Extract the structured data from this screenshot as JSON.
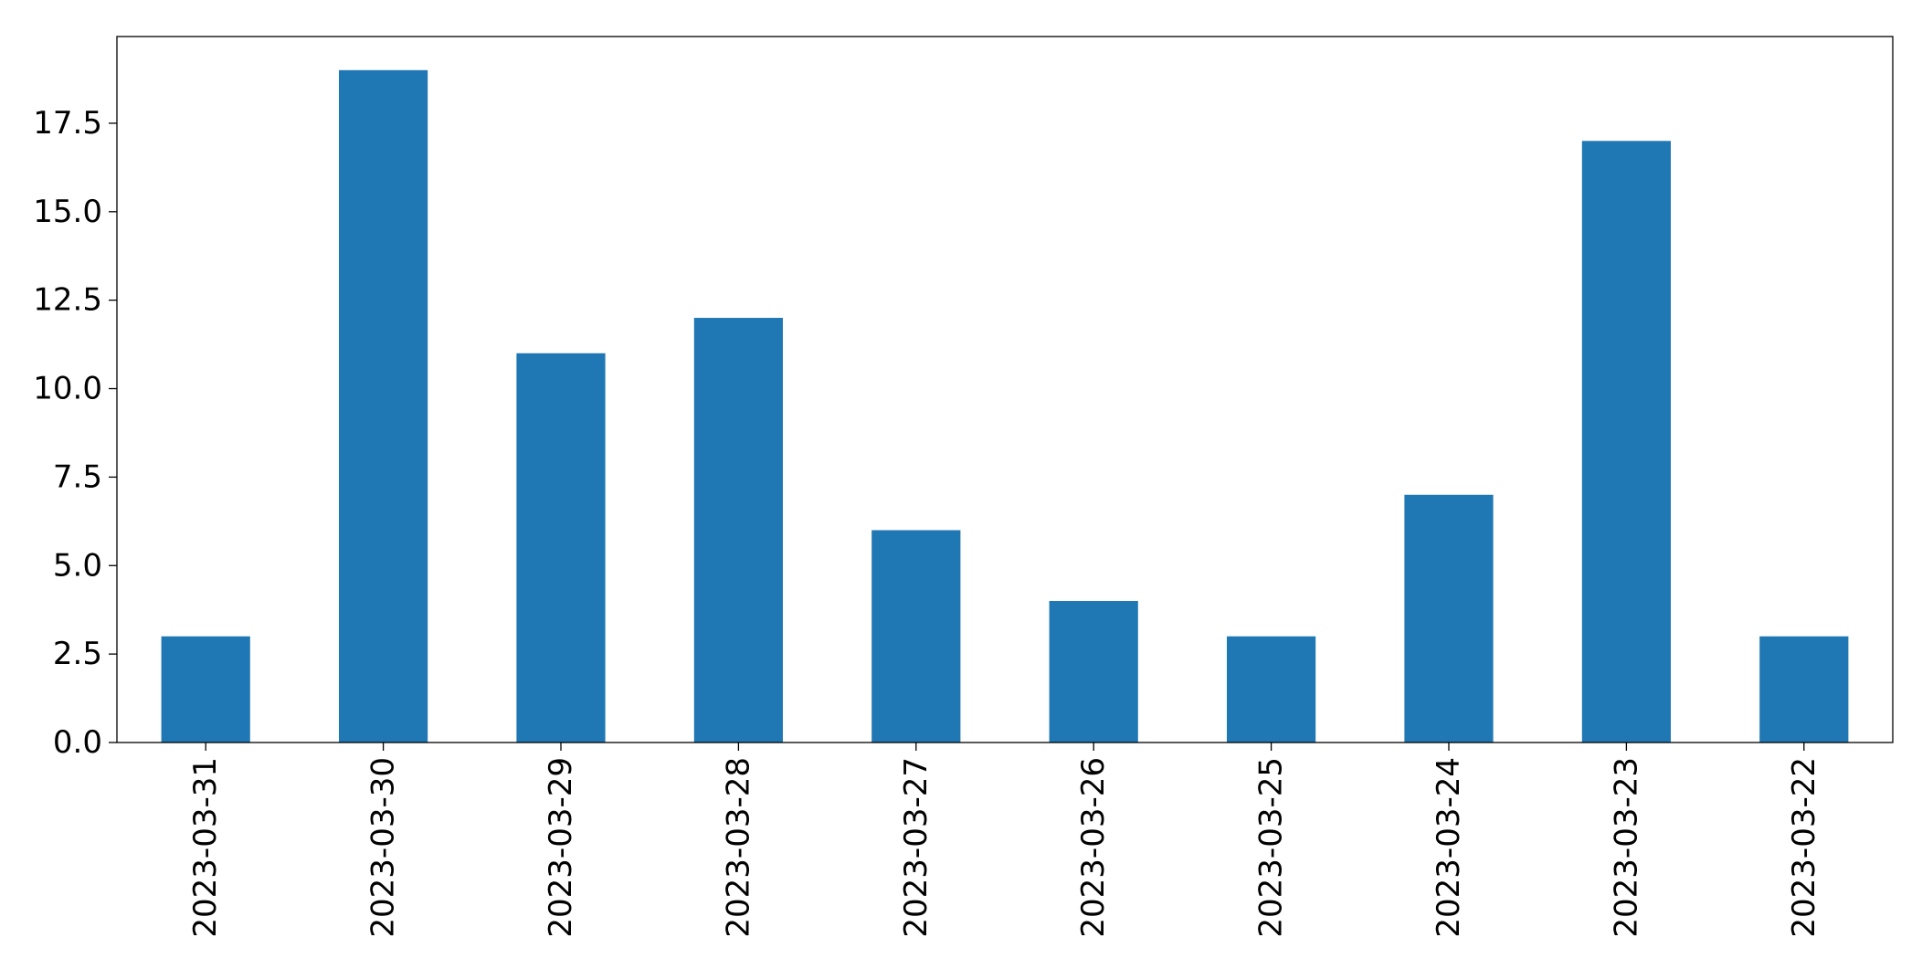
{
  "chart_data": {
    "type": "bar",
    "categories": [
      "2023-03-31",
      "2023-03-30",
      "2023-03-29",
      "2023-03-28",
      "2023-03-27",
      "2023-03-26",
      "2023-03-25",
      "2023-03-24",
      "2023-03-23",
      "2023-03-22"
    ],
    "values": [
      3,
      19,
      11,
      12,
      6,
      4,
      3,
      7,
      17,
      3
    ],
    "title": "",
    "xlabel": "",
    "ylabel": "",
    "ylim": [
      0,
      19.95
    ],
    "yticks": [
      0.0,
      2.5,
      5.0,
      7.5,
      10.0,
      12.5,
      15.0,
      17.5
    ],
    "ytick_labels": [
      "0.0",
      "2.5",
      "5.0",
      "7.5",
      "10.0",
      "12.5",
      "15.0",
      "17.5"
    ],
    "bar_color": "#1f77b4",
    "grid": false,
    "legend": "none"
  }
}
